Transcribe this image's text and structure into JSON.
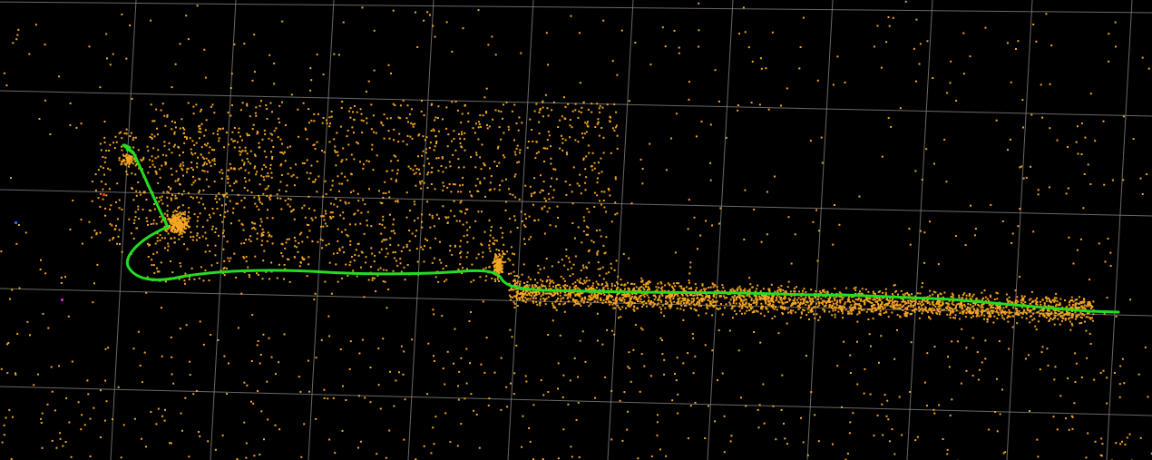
{
  "viewer": {
    "background_color": "#000000",
    "grid_color": "#8a8a8a",
    "map_point_color": "#f5a623",
    "trajectory_color": "#22dd22",
    "marker_colors": [
      "#2266ff",
      "#ff2222",
      "#cc22cc"
    ],
    "icons": {
      "camera_marker": "camera-frustum-icon"
    }
  }
}
